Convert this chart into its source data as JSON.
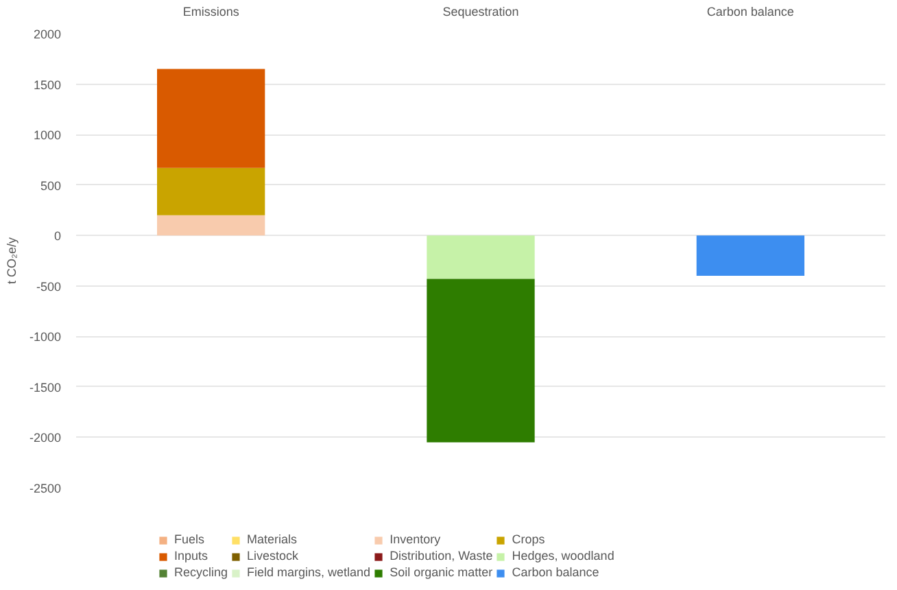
{
  "chart_data": {
    "type": "bar",
    "stacked": true,
    "ylabel": "t CO₂e/y",
    "categories": [
      "Emissions",
      "Sequestration",
      "Carbon balance"
    ],
    "ylim": [
      -2500,
      2000
    ],
    "yticks": [
      -2500,
      -2000,
      -1500,
      -1000,
      -500,
      0,
      500,
      1000,
      1500,
      2000
    ],
    "grid": "y",
    "legend": "bottom",
    "series": [
      {
        "name": "Fuels",
        "color": "#f4b183",
        "values": [
          0,
          0,
          0
        ]
      },
      {
        "name": "Materials",
        "color": "#ffe066",
        "values": [
          0,
          0,
          0
        ]
      },
      {
        "name": "Inventory",
        "color": "#f8cbad",
        "values": [
          200,
          0,
          0
        ]
      },
      {
        "name": "Crops",
        "color": "#c9a400",
        "values": [
          470,
          0,
          0
        ]
      },
      {
        "name": "Inputs",
        "color": "#d95a00",
        "values": [
          980,
          0,
          0
        ]
      },
      {
        "name": "Livestock",
        "color": "#7f6000",
        "values": [
          0,
          0,
          0
        ]
      },
      {
        "name": "Distribution, Waste",
        "color": "#8b1a1a",
        "values": [
          0,
          0,
          0
        ]
      },
      {
        "name": "Hedges, woodland",
        "color": "#c6f2a8",
        "values": [
          0,
          -430,
          0
        ]
      },
      {
        "name": "Recycling",
        "color": "#548235",
        "values": [
          0,
          0,
          0
        ]
      },
      {
        "name": "Field margins, wetland",
        "color": "#d9f2c8",
        "values": [
          0,
          0,
          0
        ]
      },
      {
        "name": "Soil organic matter",
        "color": "#2e7d00",
        "values": [
          0,
          -1620,
          0
        ]
      },
      {
        "name": "Carbon balance",
        "color": "#3d8ef0",
        "values": [
          0,
          0,
          -400
        ]
      }
    ]
  }
}
